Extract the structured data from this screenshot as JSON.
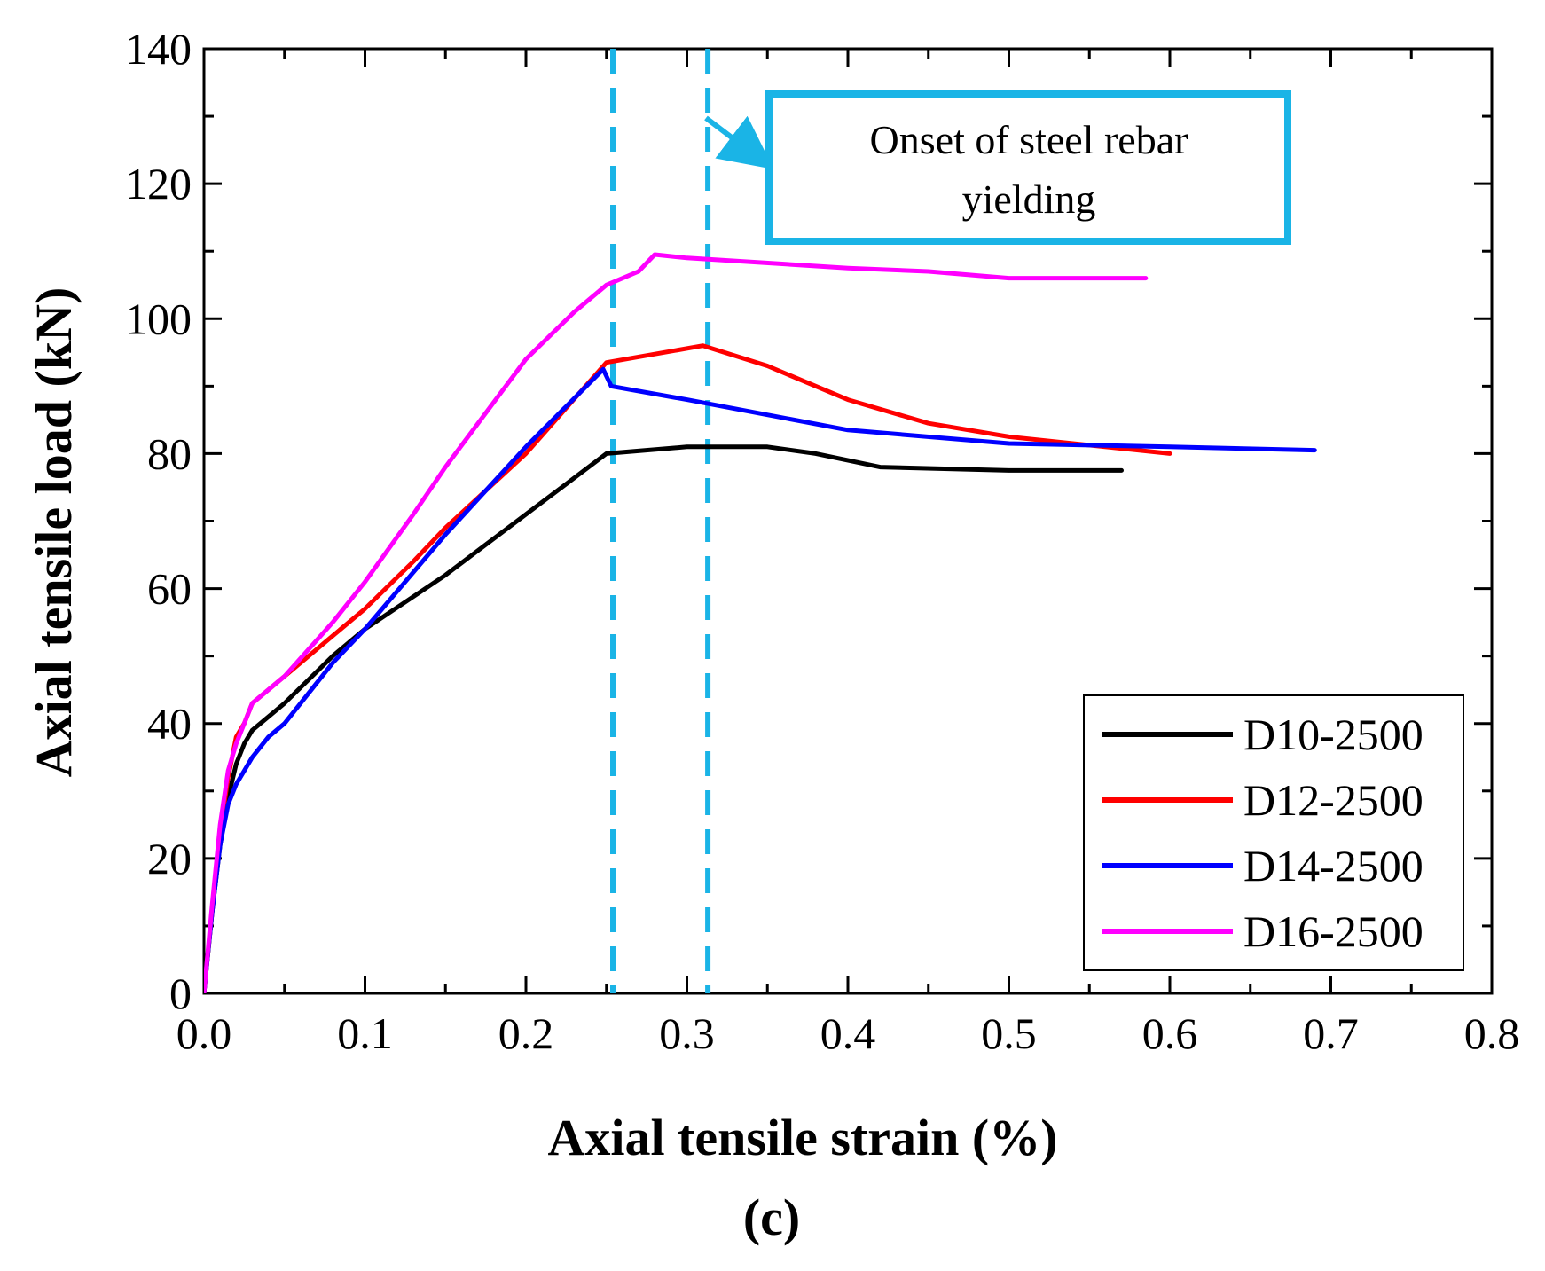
{
  "chart_data": {
    "type": "line",
    "title": "",
    "caption": "(c)",
    "xlabel": "Axial tensile strain (%)",
    "ylabel": "Axial tensile load (kN)",
    "xlim": [
      0.0,
      0.8
    ],
    "ylim": [
      0,
      140
    ],
    "xticks": [
      0.0,
      0.1,
      0.2,
      0.3,
      0.4,
      0.5,
      0.6,
      0.7,
      0.8
    ],
    "xtick_labels": [
      "0.0",
      "0.1",
      "0.2",
      "0.3",
      "0.4",
      "0.5",
      "0.6",
      "0.7",
      "0.8"
    ],
    "yticks": [
      0,
      20,
      40,
      60,
      80,
      100,
      120,
      140
    ],
    "ytick_labels": [
      "0",
      "20",
      "40",
      "60",
      "80",
      "100",
      "120",
      "140"
    ],
    "legend_position": "bottom-right",
    "series": [
      {
        "name": "D10-2500",
        "color": "#000000",
        "x": [
          0.0,
          0.005,
          0.01,
          0.015,
          0.02,
          0.025,
          0.03,
          0.05,
          0.08,
          0.1,
          0.15,
          0.2,
          0.25,
          0.3,
          0.35,
          0.38,
          0.42,
          0.5,
          0.57
        ],
        "y": [
          0,
          12,
          22,
          29,
          34,
          37,
          39,
          43,
          50,
          54,
          62,
          71,
          80,
          81,
          81,
          80,
          78,
          77.5,
          77.5
        ]
      },
      {
        "name": "D12-2500",
        "color": "#ff0000",
        "x": [
          0.0,
          0.005,
          0.01,
          0.015,
          0.02,
          0.025,
          0.03,
          0.05,
          0.08,
          0.1,
          0.13,
          0.15,
          0.2,
          0.25,
          0.31,
          0.35,
          0.4,
          0.45,
          0.5,
          0.6
        ],
        "y": [
          0,
          12,
          24,
          32,
          38,
          40,
          43,
          47,
          53,
          57,
          64,
          69,
          80,
          93.5,
          96,
          93,
          88,
          84.5,
          82.5,
          80
        ]
      },
      {
        "name": "D14-2500",
        "color": "#0000ff",
        "x": [
          0.0,
          0.005,
          0.01,
          0.015,
          0.02,
          0.025,
          0.03,
          0.04,
          0.05,
          0.08,
          0.1,
          0.15,
          0.2,
          0.248,
          0.253,
          0.3,
          0.4,
          0.5,
          0.6,
          0.69
        ],
        "y": [
          0,
          12,
          22,
          28,
          31,
          33,
          35,
          38,
          40,
          49,
          54,
          68,
          81,
          92.5,
          90,
          88,
          83.5,
          81.5,
          81,
          80.5
        ]
      },
      {
        "name": "D16-2500",
        "color": "#ff00ff",
        "x": [
          0.0,
          0.005,
          0.01,
          0.015,
          0.02,
          0.025,
          0.03,
          0.04,
          0.05,
          0.08,
          0.1,
          0.13,
          0.15,
          0.2,
          0.23,
          0.25,
          0.27,
          0.28,
          0.3,
          0.4,
          0.45,
          0.5,
          0.55,
          0.585
        ],
        "y": [
          0,
          13,
          25,
          33,
          37,
          40,
          43,
          45,
          47,
          55,
          61,
          71,
          78,
          94,
          101,
          105,
          107,
          109.5,
          109,
          107.5,
          107,
          106,
          106,
          106
        ]
      }
    ],
    "reference_lines": [
      {
        "x": 0.254,
        "color": "#1ab4e6",
        "style": "dashed"
      },
      {
        "x": 0.313,
        "color": "#1ab4e6",
        "style": "dashed"
      }
    ],
    "annotation": {
      "line1": "Onset of steel rebar",
      "line2": "yielding",
      "box_color": "#1ab4e6"
    }
  }
}
